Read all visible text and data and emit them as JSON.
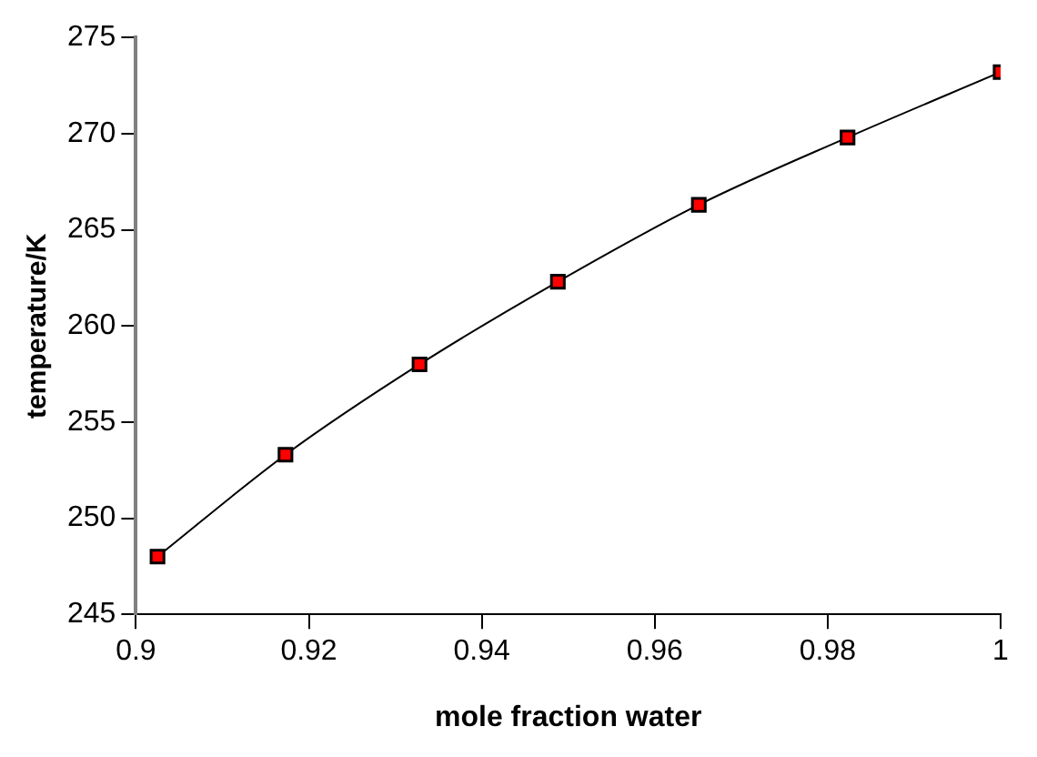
{
  "chart_data": {
    "type": "line",
    "xlabel": "mole fraction water",
    "ylabel": "temperature/K",
    "x": [
      0.9025,
      0.9173,
      0.9328,
      0.9488,
      0.9651,
      0.9823,
      1.0
    ],
    "series": [
      {
        "color": "#ff0000",
        "values": [
          248.0,
          253.3,
          258.0,
          262.3,
          266.3,
          269.8,
          273.2
        ]
      }
    ],
    "xlim": [
      0.9,
      1
    ],
    "xticks": [
      0.9,
      0.92,
      0.94,
      0.96,
      0.98,
      1
    ],
    "ylim": [
      245,
      275
    ],
    "yticks": [
      245,
      250,
      255,
      260,
      265,
      270,
      275
    ],
    "grid": false,
    "legend": false,
    "marker": "square",
    "line_style": "solid"
  }
}
